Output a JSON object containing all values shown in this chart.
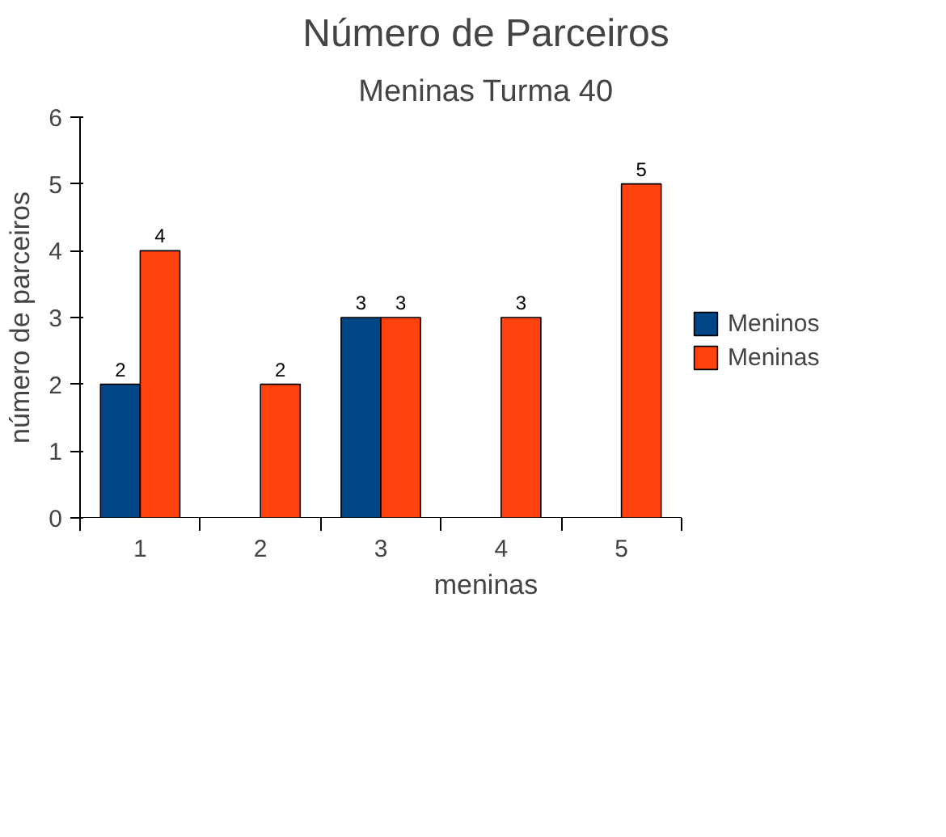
{
  "chart_data": {
    "type": "bar",
    "title": "Número de Parceiros",
    "subtitle": "Meninas Turma 40",
    "xlabel": "meninas",
    "ylabel": "número de parceiros",
    "categories": [
      "1",
      "2",
      "3",
      "4",
      "5"
    ],
    "series": [
      {
        "name": "Meninos",
        "color": "#004586",
        "values": [
          2,
          null,
          3,
          null,
          null
        ]
      },
      {
        "name": "Meninas",
        "color": "#ff420e",
        "values": [
          4,
          2,
          3,
          3,
          5
        ]
      }
    ],
    "ylim": [
      0,
      6
    ],
    "yticks": [
      0,
      1,
      2,
      3,
      4,
      5,
      6
    ],
    "grid": false,
    "legend": "right",
    "data_labels": true
  }
}
